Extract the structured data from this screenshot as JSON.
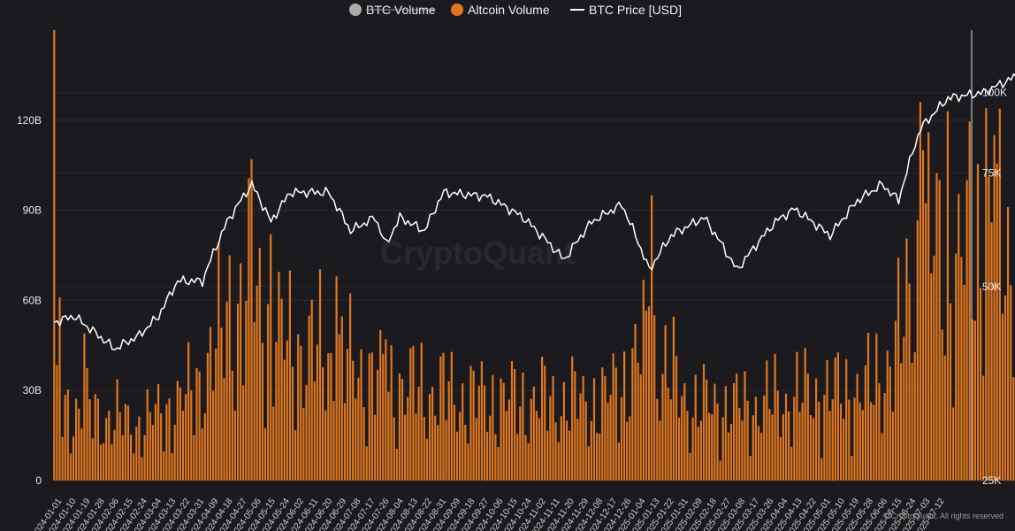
{
  "legend": [
    {
      "name": "BTC Volume",
      "color": "#aaaaaa",
      "hidden": true,
      "marker": "circle"
    },
    {
      "name": "Altcoin Volume",
      "color": "#e0771f",
      "hidden": false,
      "marker": "circle"
    },
    {
      "name": "BTC Price [USD]",
      "color": "#ffffff",
      "hidden": false,
      "marker": "line"
    }
  ],
  "watermark": "CryptoQuant",
  "copyright": "© CryptoQuant. All rights reserved",
  "chart_data": {
    "type": "bar",
    "x_start": "2024-01-01",
    "x_end": "2025-03-20",
    "x_tick_labels": [
      "2024-01-01",
      "2024-01-10",
      "2024-01-19",
      "2024-01-28",
      "2024-02-06",
      "2024-02-15",
      "2024-02-24",
      "2024-03-04",
      "2024-03-13",
      "2024-03-22",
      "2024-03-31",
      "2024-04-09",
      "2024-04-18",
      "2024-04-27",
      "2024-05-06",
      "2024-05-15",
      "2024-05-24",
      "2024-06-02",
      "2024-06-11",
      "2024-06-20",
      "2024-06-29",
      "2024-07-08",
      "2024-07-17",
      "2024-07-26",
      "2024-08-04",
      "2024-08-13",
      "2024-08-22",
      "2024-08-31",
      "2024-09-09",
      "2024-09-18",
      "2024-09-27",
      "2024-10-06",
      "2024-10-15",
      "2024-10-24",
      "2024-11-02",
      "2024-11-11",
      "2024-11-20",
      "2024-11-29",
      "2024-12-08",
      "2024-12-17",
      "2024-12-26",
      "2025-01-04",
      "2025-01-13",
      "2025-01-22",
      "2025-01-31",
      "2025-02-09",
      "2025-02-18",
      "2025-02-27",
      "2025-03-08",
      "2025-03-17",
      "2025-03-26",
      "2025-04-04",
      "2025-04-13",
      "2025-04-22",
      "2025-05-01",
      "2025-05-10",
      "2025-05-19",
      "2025-05-28",
      "2025-06-06",
      "2025-06-15",
      "2025-06-24",
      "2025-07-03",
      "2025-07-12"
    ],
    "left_axis": {
      "ticks": [
        0,
        30,
        60,
        90,
        120
      ],
      "tick_labels": [
        "0",
        "30B",
        "60B",
        "90B",
        "120B"
      ],
      "min": 0,
      "max": 150,
      "unit": "B"
    },
    "right_axis": {
      "ticks": [
        25,
        50,
        75,
        100
      ],
      "tick_labels": [
        "25K",
        "50K",
        "75K",
        "100K"
      ],
      "min": 25,
      "max": 125,
      "unit": "K",
      "scale": "log"
    },
    "grid": true,
    "legend_position": "top-center",
    "series": [
      {
        "name": "Altcoin Volume",
        "type": "bar",
        "axis": "left",
        "color": "#e0771f",
        "anchors": [
          [
            "2024-01-01",
            25
          ],
          [
            "2024-01-15",
            22
          ],
          [
            "2024-02-01",
            18
          ],
          [
            "2024-02-20",
            28
          ],
          [
            "2024-03-05",
            52
          ],
          [
            "2024-03-13",
            62
          ],
          [
            "2024-03-25",
            45
          ],
          [
            "2024-04-13",
            40
          ],
          [
            "2024-05-01",
            32
          ],
          [
            "2024-06-01",
            27
          ],
          [
            "2024-07-01",
            26
          ],
          [
            "2024-07-20",
            26
          ],
          [
            "2024-08-05",
            44
          ],
          [
            "2024-08-20",
            25
          ],
          [
            "2024-09-10",
            24
          ],
          [
            "2024-10-01",
            28
          ],
          [
            "2024-10-25",
            30
          ],
          [
            "2024-11-05",
            46
          ],
          [
            "2024-11-12",
            78
          ],
          [
            "2024-11-25",
            70
          ],
          [
            "2024-12-06",
            82
          ],
          [
            "2024-12-20",
            62
          ],
          [
            "2025-01-05",
            52
          ],
          [
            "2025-01-20",
            60
          ],
          [
            "2025-02-03",
            65
          ],
          [
            "2025-02-20",
            44
          ],
          [
            "2025-03-10",
            52
          ],
          [
            "2025-04-01",
            42
          ],
          [
            "2025-04-09",
            48
          ],
          [
            "2025-04-25",
            32
          ],
          [
            "2025-05-12",
            62
          ],
          [
            "2025-05-25",
            55
          ],
          [
            "2025-06-15",
            42
          ],
          [
            "2025-07-01",
            38
          ],
          [
            "2025-07-10",
            65
          ],
          [
            "2025-07-17",
            90
          ]
        ],
        "peaks": [
          [
            "2024-01-01",
            150
          ],
          [
            "2024-01-03",
            61
          ],
          [
            "2024-01-12",
            49
          ],
          [
            "2024-03-05",
            75
          ],
          [
            "2024-03-13",
            107
          ],
          [
            "2024-03-20",
            82
          ],
          [
            "2024-04-13",
            68
          ],
          [
            "2024-05-01",
            47
          ],
          [
            "2024-08-05",
            58
          ],
          [
            "2024-08-06",
            95
          ],
          [
            "2024-08-07",
            55
          ],
          [
            "2024-11-12",
            126
          ],
          [
            "2024-11-13",
            110
          ],
          [
            "2024-11-22",
            123
          ],
          [
            "2024-12-06",
            124
          ],
          [
            "2024-12-09",
            115
          ],
          [
            "2024-12-20",
            80
          ],
          [
            "2025-01-19",
            142
          ],
          [
            "2025-01-20",
            110
          ],
          [
            "2025-02-03",
            104
          ],
          [
            "2025-02-28",
            66
          ],
          [
            "2025-04-07",
            78
          ],
          [
            "2025-05-12",
            85
          ],
          [
            "2025-07-14",
            100
          ],
          [
            "2025-07-17",
            92
          ]
        ]
      },
      {
        "name": "BTC Price [USD]",
        "type": "line",
        "axis": "right",
        "color": "#ffffff",
        "anchors": [
          [
            "2024-01-01",
            44
          ],
          [
            "2024-01-08",
            45
          ],
          [
            "2024-01-14",
            43
          ],
          [
            "2024-01-23",
            40
          ],
          [
            "2024-02-01",
            42
          ],
          [
            "2024-02-08",
            45
          ],
          [
            "2024-02-15",
            51
          ],
          [
            "2024-02-24",
            51
          ],
          [
            "2024-03-04",
            63
          ],
          [
            "2024-03-13",
            72
          ],
          [
            "2024-03-20",
            63
          ],
          [
            "2024-03-27",
            70
          ],
          [
            "2024-04-10",
            70
          ],
          [
            "2024-04-18",
            61
          ],
          [
            "2024-04-27",
            64
          ],
          [
            "2024-05-01",
            58
          ],
          [
            "2024-05-06",
            64
          ],
          [
            "2024-05-15",
            61
          ],
          [
            "2024-05-22",
            70
          ],
          [
            "2024-06-07",
            69
          ],
          [
            "2024-06-20",
            64
          ],
          [
            "2024-07-05",
            55
          ],
          [
            "2024-07-15",
            63
          ],
          [
            "2024-07-26",
            67
          ],
          [
            "2024-08-05",
            53
          ],
          [
            "2024-08-13",
            60
          ],
          [
            "2024-08-25",
            64
          ],
          [
            "2024-09-06",
            53
          ],
          [
            "2024-09-20",
            63
          ],
          [
            "2024-09-27",
            66
          ],
          [
            "2024-10-10",
            60
          ],
          [
            "2024-10-20",
            68
          ],
          [
            "2024-10-29",
            72
          ],
          [
            "2024-11-04",
            68
          ],
          [
            "2024-11-12",
            88
          ],
          [
            "2024-11-22",
            98
          ],
          [
            "2024-12-05",
            100
          ],
          [
            "2024-12-17",
            106
          ],
          [
            "2024-12-26",
            94
          ],
          [
            "2025-01-04",
            98
          ],
          [
            "2025-01-13",
            91
          ],
          [
            "2025-01-22",
            105
          ],
          [
            "2025-02-01",
            101
          ],
          [
            "2025-02-10",
            97
          ],
          [
            "2025-02-20",
            98
          ],
          [
            "2025-02-27",
            82
          ],
          [
            "2025-03-08",
            87
          ],
          [
            "2025-03-10",
            78
          ],
          [
            "2025-03-17",
            82
          ],
          [
            "2025-03-27",
            88
          ],
          [
            "2025-04-08",
            76
          ],
          [
            "2025-04-13",
            84
          ],
          [
            "2025-04-22",
            88
          ],
          [
            "2025-05-01",
            96
          ],
          [
            "2025-05-10",
            103
          ],
          [
            "2025-05-19",
            106
          ],
          [
            "2025-05-22",
            111
          ],
          [
            "2025-06-05",
            102
          ],
          [
            "2025-06-12",
            108
          ],
          [
            "2025-06-22",
            100
          ],
          [
            "2025-07-01",
            107
          ],
          [
            "2025-07-10",
            110
          ],
          [
            "2025-07-13",
            119
          ],
          [
            "2025-07-17",
            118
          ]
        ]
      }
    ]
  }
}
